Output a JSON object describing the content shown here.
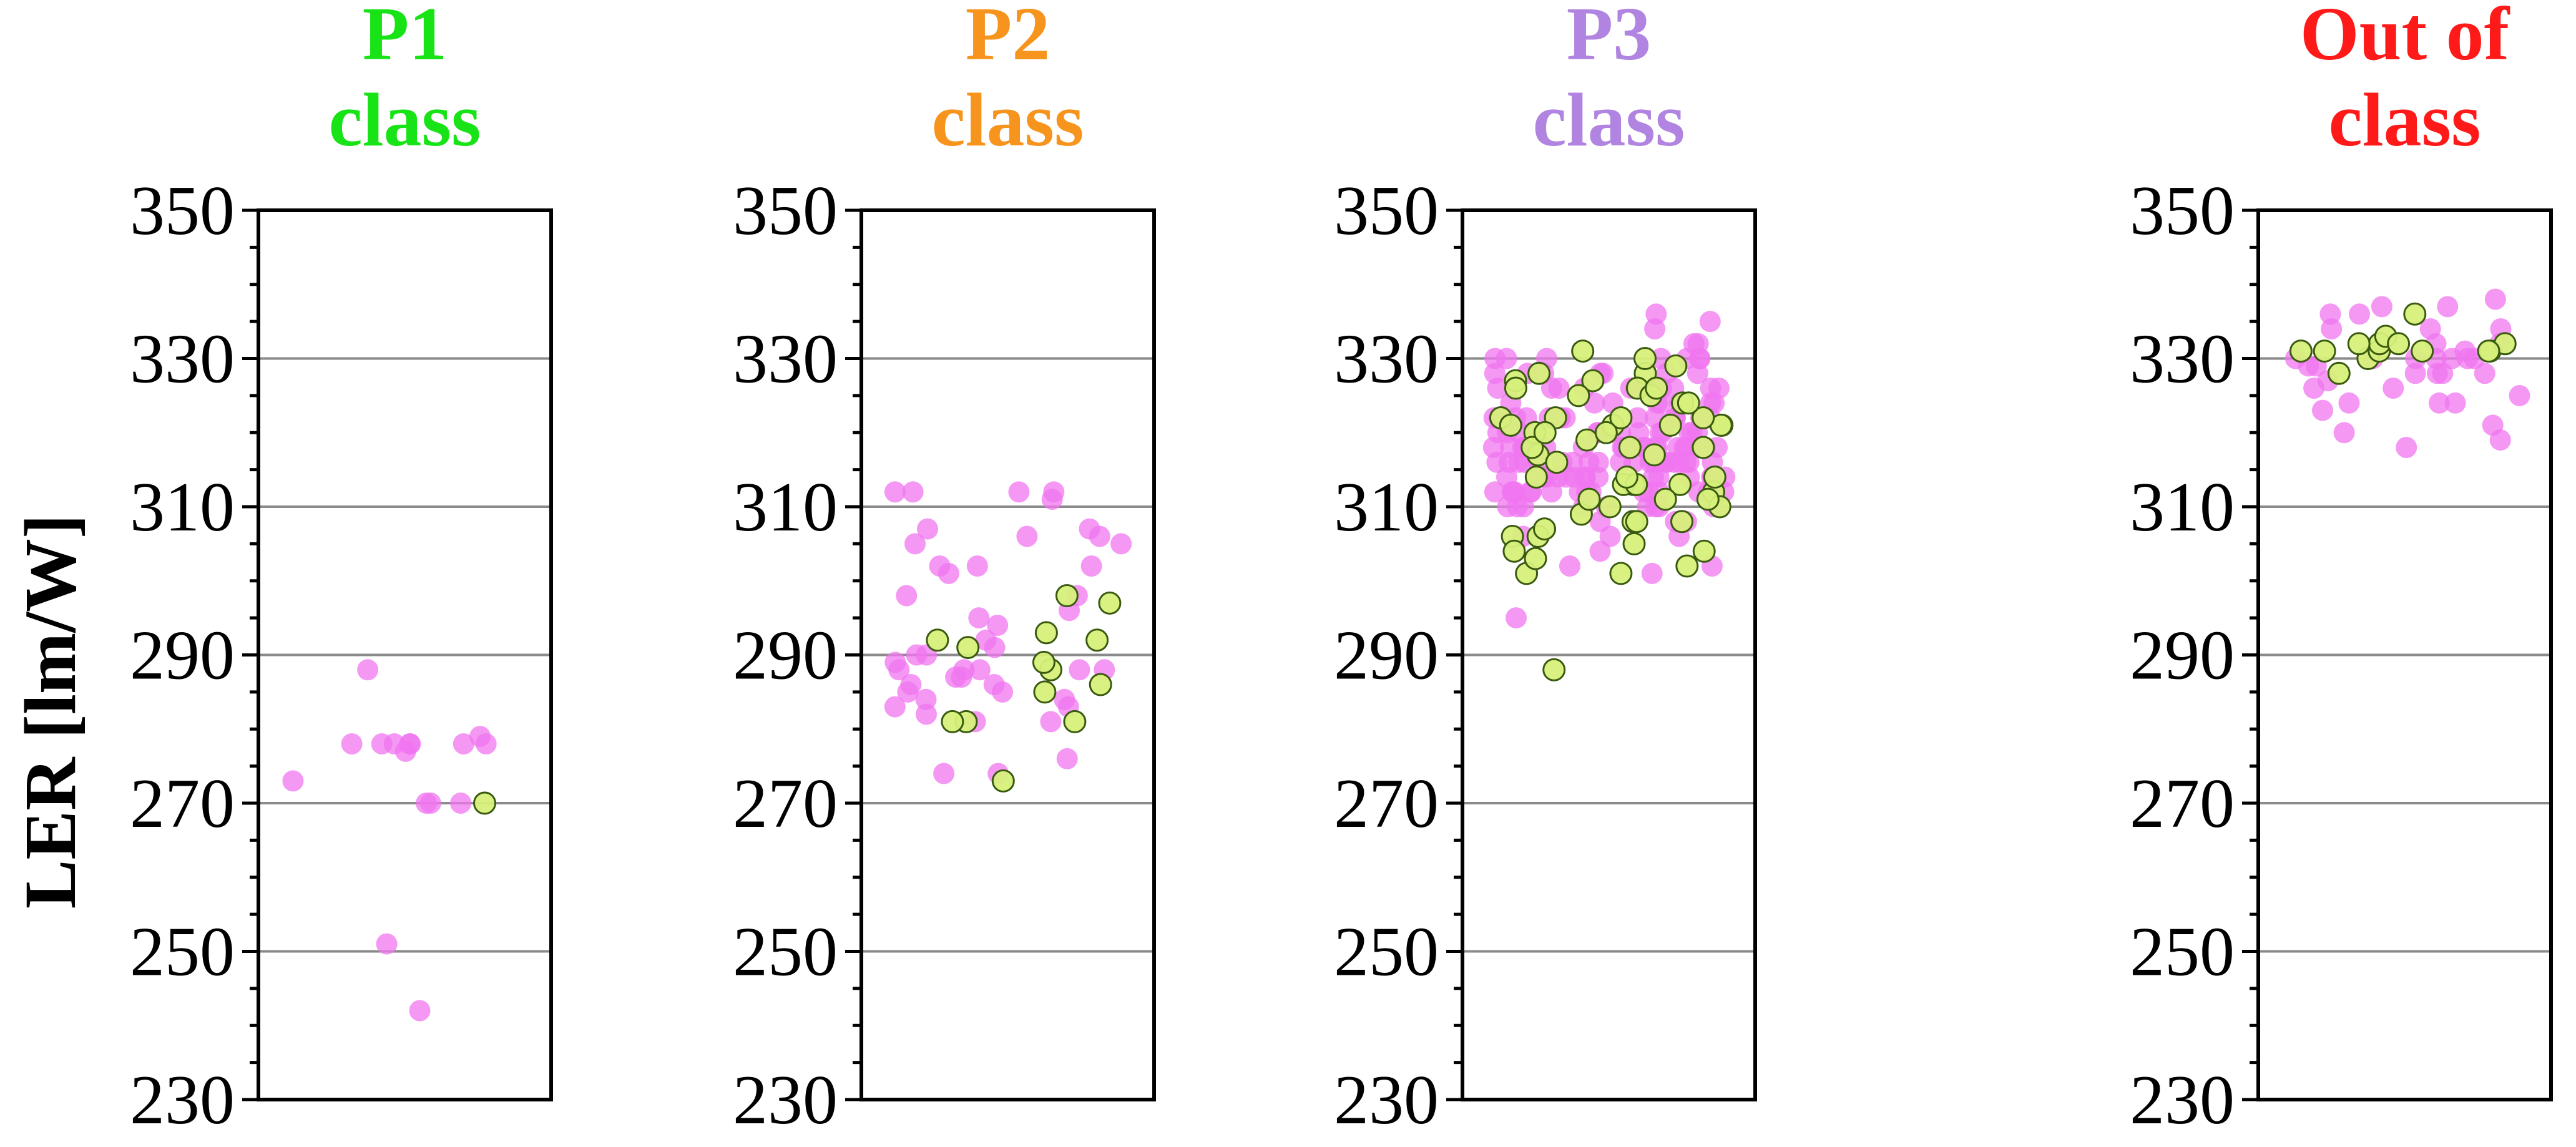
{
  "chart_data": {
    "type": "scatter",
    "ylabel": "LER [lm/W]",
    "ylim": [
      230,
      350
    ],
    "yticks": [
      230,
      250,
      270,
      290,
      310,
      330,
      350
    ],
    "gridlines": [
      250,
      270,
      290,
      310,
      330
    ],
    "colors": {
      "magenta_fill": "#f075f0",
      "green_fill": "#d6f07a",
      "green_stroke": "#3a5a10",
      "grid": "#8a8a8a",
      "axis": "#000000"
    },
    "panels": [
      {
        "title": [
          "P1",
          "class"
        ],
        "title_color": "#17e317",
        "series": [
          {
            "name": "magenta",
            "values": [
              270,
              242,
              278,
              278,
              279,
              278,
              277,
              278,
              278,
              273,
              270,
              270,
              278,
              278,
              288,
              251
            ]
          },
          {
            "name": "green",
            "values": [
              270
            ]
          }
        ]
      },
      {
        "title": [
          "P2",
          "class"
        ],
        "title_color": "#f7941d",
        "series": [
          {
            "name": "magenta",
            "values": [
              305,
              305,
              291,
              298,
              292,
              288,
              284,
              295,
              274,
              312,
              302,
              312,
              307,
              296,
              288,
              286,
              276,
              285,
              274,
              312,
              298,
              289,
              306,
              290,
              283,
              312,
              287,
              285,
              311,
              286,
              283,
              282,
              288,
              302,
              302,
              301,
              290,
              288,
              294,
              281,
              306,
              307,
              287,
              288,
              284,
              281
            ]
          },
          {
            "name": "green",
            "values": [
              291,
              281,
              298,
              297,
              292,
              292,
              281,
              285,
              286,
              288,
              289,
              293,
              273,
              281
            ]
          }
        ]
      },
      {
        "title": [
          "P3",
          "class"
        ],
        "title_color": "#b084e0",
        "series": [
          {
            "name": "magenta",
            "values": [
              318,
              316,
              312,
              302,
              326,
              328,
              322,
              314,
              310,
              316,
              320,
              318,
              312,
              314,
              326,
              328,
              320,
              316,
              308,
              310,
              318,
              322,
              316,
              312,
              314,
              330,
              328,
              322,
              320,
              318,
              316,
              310,
              312,
              314,
              301,
              306,
              322,
              324,
              332,
              330,
              326,
              320,
              318,
              316,
              314,
              312,
              310,
              314,
              316,
              318,
              322,
              324,
              320,
              316,
              312,
              314,
              308,
              310,
              312,
              316,
              318,
              320,
              322,
              326,
              330,
              328,
              324,
              316,
              312,
              310,
              314,
              316,
              295,
              318,
              320,
              324,
              326,
              322,
              318,
              314,
              310,
              312,
              316,
              318,
              320,
              322,
              312,
              314,
              316,
              336,
              330,
              326,
              322,
              318,
              314,
              312,
              310,
              316,
              318,
              320,
              302,
              306,
              310,
              314,
              318,
              322,
              326,
              328,
              330,
              316,
              318,
              312,
              314,
              316,
              320,
              322,
              324,
              326,
              318,
              314,
              312,
              310,
              316,
              318,
              322,
              324,
              326,
              330,
              332,
              328,
              324,
              320,
              318,
              316,
              314,
              312,
              306,
              308,
              304,
              316,
              318,
              320,
              322,
              326,
              328,
              330,
              324,
              320,
              316,
              314,
              312,
              316,
              318,
              322,
              334,
              335,
              312,
              318,
              322,
              326
            ]
          },
          {
            "name": "green",
            "values": [
              327,
              308,
              317,
              313,
              304,
              312,
              327,
              321,
              314,
              313,
              320,
              322,
              319,
              318,
              306,
              306,
              313,
              322,
              318,
              305,
              325,
              321,
              322,
              321,
              310,
              301,
              303,
              313,
              309,
              314,
              324,
              308,
              314,
              311,
              316,
              320,
              331,
              328,
              310,
              311,
              329,
              326,
              317,
              308,
              311,
              304,
              302,
              301,
              307,
              328,
              326,
              325,
              326,
              324,
              321,
              322,
              320,
              330,
              318,
              321,
              288
            ]
          }
        ]
      },
      {
        "title": [
          "Out of",
          "class"
        ],
        "title_color": "#ff1a1a",
        "series": [
          {
            "name": "magenta",
            "values": [
              323,
              327,
              325,
              330,
              328,
              320,
              328,
              324,
              330,
              330,
              334,
              332,
              337,
              330,
              329,
              326,
              332,
              331,
              336,
              334,
              336,
              334,
              330,
              318,
              330,
              328,
              337,
              338,
              321,
              326,
              330,
              319,
              324,
              324,
              329,
              328
            ]
          },
          {
            "name": "green",
            "values": [
              336,
              328,
              330,
              331,
              331,
              332,
              332,
              333,
              331,
              331,
              332,
              332,
              331,
              331
            ]
          }
        ]
      }
    ]
  }
}
